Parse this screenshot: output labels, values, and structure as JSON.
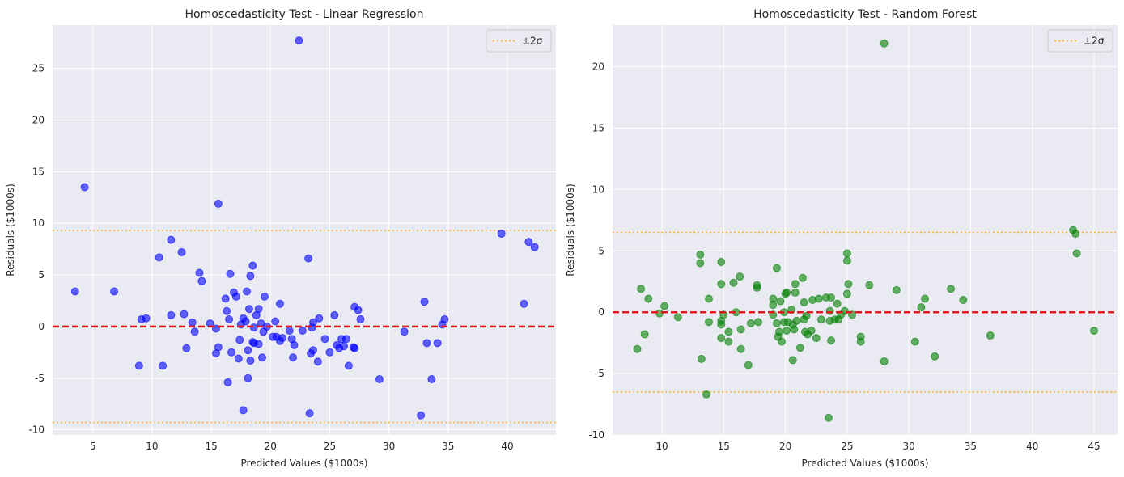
{
  "chart_data": [
    {
      "type": "scatter",
      "title": "Homoscedasticity Test - Linear Regression",
      "xlabel": "Predicted Values ($1000s)",
      "ylabel": "Residuals ($1000s)",
      "xlim": [
        1.6,
        44.1
      ],
      "ylim": [
        -10.5,
        29.2
      ],
      "xticks": [
        5,
        10,
        15,
        20,
        25,
        30,
        35,
        40
      ],
      "yticks": [
        -10,
        -5,
        0,
        5,
        10,
        15,
        20,
        25
      ],
      "grid": true,
      "legend": {
        "entries": [
          "±2σ"
        ],
        "position": "top-right"
      },
      "point_color": "#0000ff",
      "zero_line_color": "#e31a1c",
      "band_color": "#ffa500",
      "sigma_band": [
        9.3,
        -9.3
      ],
      "points": [
        {
          "x": 3.5,
          "y": 3.4
        },
        {
          "x": 4.3,
          "y": 13.5
        },
        {
          "x": 6.8,
          "y": 3.4
        },
        {
          "x": 8.9,
          "y": -3.8
        },
        {
          "x": 9.1,
          "y": 0.7
        },
        {
          "x": 9.5,
          "y": 0.8
        },
        {
          "x": 10.6,
          "y": 6.7
        },
        {
          "x": 10.9,
          "y": -3.8
        },
        {
          "x": 11.6,
          "y": 8.4
        },
        {
          "x": 11.6,
          "y": 1.1
        },
        {
          "x": 12.5,
          "y": 7.2
        },
        {
          "x": 12.7,
          "y": 1.2
        },
        {
          "x": 12.9,
          "y": -2.1
        },
        {
          "x": 13.4,
          "y": 0.4
        },
        {
          "x": 13.6,
          "y": -0.5
        },
        {
          "x": 14.0,
          "y": 5.2
        },
        {
          "x": 14.2,
          "y": 4.4
        },
        {
          "x": 14.9,
          "y": 0.3
        },
        {
          "x": 15.4,
          "y": -0.2
        },
        {
          "x": 15.4,
          "y": -2.6
        },
        {
          "x": 15.6,
          "y": 11.9
        },
        {
          "x": 15.6,
          "y": -2.0
        },
        {
          "x": 16.2,
          "y": 2.7
        },
        {
          "x": 16.3,
          "y": 1.5
        },
        {
          "x": 16.4,
          "y": -5.4
        },
        {
          "x": 16.5,
          "y": 0.7
        },
        {
          "x": 16.6,
          "y": 5.1
        },
        {
          "x": 16.7,
          "y": -2.5
        },
        {
          "x": 16.9,
          "y": 3.3
        },
        {
          "x": 17.1,
          "y": 2.9
        },
        {
          "x": 17.3,
          "y": -3.1
        },
        {
          "x": 17.4,
          "y": -1.3
        },
        {
          "x": 17.5,
          "y": 0.2
        },
        {
          "x": 17.7,
          "y": 0.8
        },
        {
          "x": 17.7,
          "y": -8.1
        },
        {
          "x": 17.9,
          "y": 0.5
        },
        {
          "x": 18.0,
          "y": 3.4
        },
        {
          "x": 18.1,
          "y": -2.3
        },
        {
          "x": 18.1,
          "y": -5.0
        },
        {
          "x": 18.2,
          "y": 1.7
        },
        {
          "x": 18.3,
          "y": -3.3
        },
        {
          "x": 18.3,
          "y": 4.9
        },
        {
          "x": 18.5,
          "y": 5.9
        },
        {
          "x": 18.5,
          "y": -1.5
        },
        {
          "x": 18.6,
          "y": -0.1
        },
        {
          "x": 18.6,
          "y": -1.6
        },
        {
          "x": 18.8,
          "y": 1.1
        },
        {
          "x": 19.0,
          "y": 1.7
        },
        {
          "x": 19.0,
          "y": -1.7
        },
        {
          "x": 19.2,
          "y": 0.3
        },
        {
          "x": 19.3,
          "y": -3.0
        },
        {
          "x": 19.4,
          "y": -0.5
        },
        {
          "x": 19.5,
          "y": 2.9
        },
        {
          "x": 19.7,
          "y": 0.0
        },
        {
          "x": 20.2,
          "y": -1.0
        },
        {
          "x": 20.4,
          "y": 0.5
        },
        {
          "x": 20.5,
          "y": -1.0
        },
        {
          "x": 20.8,
          "y": 2.2
        },
        {
          "x": 20.8,
          "y": -1.4
        },
        {
          "x": 21.0,
          "y": -1.1
        },
        {
          "x": 21.6,
          "y": -0.4
        },
        {
          "x": 21.8,
          "y": -1.2
        },
        {
          "x": 21.9,
          "y": -3.0
        },
        {
          "x": 22.0,
          "y": -1.8
        },
        {
          "x": 22.4,
          "y": 27.7
        },
        {
          "x": 22.7,
          "y": -0.4
        },
        {
          "x": 23.2,
          "y": 6.6
        },
        {
          "x": 23.3,
          "y": -8.4
        },
        {
          "x": 23.4,
          "y": -2.6
        },
        {
          "x": 23.5,
          "y": -0.1
        },
        {
          "x": 23.6,
          "y": 0.4
        },
        {
          "x": 23.6,
          "y": -2.3
        },
        {
          "x": 24.0,
          "y": -3.4
        },
        {
          "x": 24.1,
          "y": 0.8
        },
        {
          "x": 24.6,
          "y": -1.2
        },
        {
          "x": 25.0,
          "y": -2.5
        },
        {
          "x": 25.4,
          "y": 1.1
        },
        {
          "x": 25.6,
          "y": -1.8
        },
        {
          "x": 25.8,
          "y": -2.1
        },
        {
          "x": 26.0,
          "y": -1.2
        },
        {
          "x": 26.2,
          "y": -1.9
        },
        {
          "x": 26.4,
          "y": -1.2
        },
        {
          "x": 26.6,
          "y": -3.8
        },
        {
          "x": 27.0,
          "y": -2.0
        },
        {
          "x": 27.1,
          "y": 1.9
        },
        {
          "x": 27.1,
          "y": -2.1
        },
        {
          "x": 27.4,
          "y": 1.6
        },
        {
          "x": 27.6,
          "y": 0.7
        },
        {
          "x": 29.2,
          "y": -5.1
        },
        {
          "x": 31.3,
          "y": -0.5
        },
        {
          "x": 32.7,
          "y": -8.6
        },
        {
          "x": 33.0,
          "y": 2.4
        },
        {
          "x": 33.2,
          "y": -1.6
        },
        {
          "x": 33.6,
          "y": -5.1
        },
        {
          "x": 34.1,
          "y": -1.6
        },
        {
          "x": 34.5,
          "y": 0.2
        },
        {
          "x": 34.7,
          "y": 0.7
        },
        {
          "x": 39.5,
          "y": 9.0
        },
        {
          "x": 41.4,
          "y": 2.2
        },
        {
          "x": 41.8,
          "y": 8.2
        },
        {
          "x": 42.3,
          "y": 7.7
        }
      ]
    },
    {
      "type": "scatter",
      "title": "Homoscedasticity Test - Random Forest",
      "xlabel": "Predicted Values ($1000s)",
      "ylabel": "Residuals ($1000s)",
      "xlim": [
        6.0,
        46.9
      ],
      "ylim": [
        -10.0,
        23.4
      ],
      "xticks": [
        10,
        15,
        20,
        25,
        30,
        35,
        40,
        45
      ],
      "yticks": [
        -10,
        -5,
        0,
        5,
        10,
        15,
        20
      ],
      "grid": true,
      "legend": {
        "entries": [
          "±2σ"
        ],
        "position": "top-right"
      },
      "point_color": "#008000",
      "zero_line_color": "#e31a1c",
      "band_color": "#ffa500",
      "sigma_band": [
        6.5,
        -6.5
      ],
      "points": [
        {
          "x": 8.0,
          "y": -3.0
        },
        {
          "x": 8.3,
          "y": 1.9
        },
        {
          "x": 8.6,
          "y": -1.8
        },
        {
          "x": 8.9,
          "y": 1.1
        },
        {
          "x": 9.8,
          "y": -0.1
        },
        {
          "x": 10.2,
          "y": 0.5
        },
        {
          "x": 11.3,
          "y": -0.4
        },
        {
          "x": 13.1,
          "y": 4.7
        },
        {
          "x": 13.1,
          "y": 4.0
        },
        {
          "x": 13.2,
          "y": -3.8
        },
        {
          "x": 13.6,
          "y": -6.7
        },
        {
          "x": 13.8,
          "y": 1.1
        },
        {
          "x": 13.8,
          "y": -0.8
        },
        {
          "x": 14.8,
          "y": 4.1
        },
        {
          "x": 14.8,
          "y": 2.3
        },
        {
          "x": 14.8,
          "y": -0.7
        },
        {
          "x": 14.8,
          "y": -1.0
        },
        {
          "x": 14.8,
          "y": -2.1
        },
        {
          "x": 15.0,
          "y": -0.2
        },
        {
          "x": 15.4,
          "y": -1.6
        },
        {
          "x": 15.4,
          "y": -2.4
        },
        {
          "x": 15.8,
          "y": 2.4
        },
        {
          "x": 16.0,
          "y": 0.0
        },
        {
          "x": 16.3,
          "y": 2.9
        },
        {
          "x": 16.4,
          "y": -1.4
        },
        {
          "x": 16.4,
          "y": -3.0
        },
        {
          "x": 17.0,
          "y": -4.3
        },
        {
          "x": 17.2,
          "y": -0.9
        },
        {
          "x": 17.7,
          "y": 2.2
        },
        {
          "x": 17.7,
          "y": 2.0
        },
        {
          "x": 17.8,
          "y": -0.8
        },
        {
          "x": 19.0,
          "y": 1.1
        },
        {
          "x": 19.0,
          "y": 0.6
        },
        {
          "x": 19.0,
          "y": -0.2
        },
        {
          "x": 19.3,
          "y": 3.6
        },
        {
          "x": 19.3,
          "y": -0.9
        },
        {
          "x": 19.4,
          "y": -2.0
        },
        {
          "x": 19.5,
          "y": -1.6
        },
        {
          "x": 19.6,
          "y": 0.9
        },
        {
          "x": 19.7,
          "y": -2.4
        },
        {
          "x": 19.9,
          "y": -0.8
        },
        {
          "x": 19.9,
          "y": 0.0
        },
        {
          "x": 20.0,
          "y": 1.5
        },
        {
          "x": 20.1,
          "y": 1.6
        },
        {
          "x": 20.1,
          "y": -1.5
        },
        {
          "x": 20.2,
          "y": -0.8
        },
        {
          "x": 20.5,
          "y": 0.2
        },
        {
          "x": 20.6,
          "y": -1.0
        },
        {
          "x": 20.6,
          "y": -3.9
        },
        {
          "x": 20.7,
          "y": -1.4
        },
        {
          "x": 20.8,
          "y": 2.3
        },
        {
          "x": 20.8,
          "y": 1.6
        },
        {
          "x": 20.9,
          "y": -0.7
        },
        {
          "x": 21.2,
          "y": -2.9
        },
        {
          "x": 21.4,
          "y": 2.8
        },
        {
          "x": 21.5,
          "y": 0.8
        },
        {
          "x": 21.5,
          "y": -0.6
        },
        {
          "x": 21.6,
          "y": -1.6
        },
        {
          "x": 21.7,
          "y": -0.3
        },
        {
          "x": 21.8,
          "y": -1.8
        },
        {
          "x": 22.1,
          "y": -1.5
        },
        {
          "x": 22.2,
          "y": 1.0
        },
        {
          "x": 22.5,
          "y": -2.1
        },
        {
          "x": 22.7,
          "y": 1.1
        },
        {
          "x": 22.9,
          "y": -0.6
        },
        {
          "x": 23.3,
          "y": 1.2
        },
        {
          "x": 23.5,
          "y": -8.6
        },
        {
          "x": 23.6,
          "y": 0.1
        },
        {
          "x": 23.6,
          "y": -0.7
        },
        {
          "x": 23.7,
          "y": 1.2
        },
        {
          "x": 23.7,
          "y": -2.3
        },
        {
          "x": 24.0,
          "y": -0.6
        },
        {
          "x": 24.2,
          "y": 0.7
        },
        {
          "x": 24.3,
          "y": -0.6
        },
        {
          "x": 24.5,
          "y": -0.2
        },
        {
          "x": 24.8,
          "y": 0.1
        },
        {
          "x": 25.0,
          "y": 4.8
        },
        {
          "x": 25.0,
          "y": 4.2
        },
        {
          "x": 25.0,
          "y": 1.5
        },
        {
          "x": 25.1,
          "y": 2.3
        },
        {
          "x": 25.4,
          "y": -0.2
        },
        {
          "x": 26.1,
          "y": -2.0
        },
        {
          "x": 26.1,
          "y": -2.4
        },
        {
          "x": 26.8,
          "y": 2.2
        },
        {
          "x": 28.0,
          "y": 21.9
        },
        {
          "x": 28.0,
          "y": -4.0
        },
        {
          "x": 29.0,
          "y": 1.8
        },
        {
          "x": 30.5,
          "y": -2.4
        },
        {
          "x": 31.0,
          "y": 0.4
        },
        {
          "x": 31.3,
          "y": 1.1
        },
        {
          "x": 32.1,
          "y": -3.6
        },
        {
          "x": 33.4,
          "y": 1.9
        },
        {
          "x": 34.4,
          "y": 1.0
        },
        {
          "x": 36.6,
          "y": -1.9
        },
        {
          "x": 43.3,
          "y": 6.7
        },
        {
          "x": 43.5,
          "y": 6.4
        },
        {
          "x": 43.6,
          "y": 4.8
        },
        {
          "x": 45.0,
          "y": -1.5
        }
      ]
    }
  ]
}
